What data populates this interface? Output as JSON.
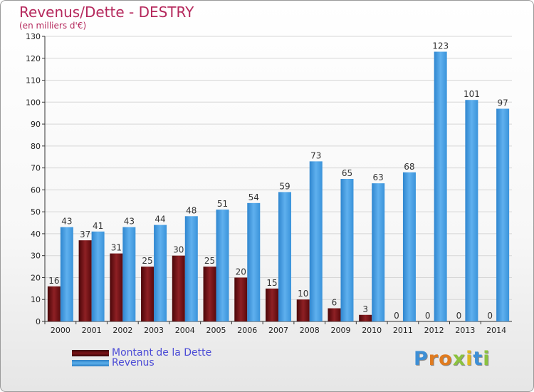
{
  "title": "Revenus/Dette - DESTRY",
  "subtitle": "(en milliers d'€)",
  "colors": {
    "dette": "#6b0f12",
    "revenus": "#3d96dc",
    "title": "#b5285c",
    "legend_text": "#4a4ad6"
  },
  "legend": [
    {
      "label": "Montant de la Dette",
      "series": "dette"
    },
    {
      "label": "Revenus",
      "series": "revenus"
    }
  ],
  "logo": {
    "text": "Proxiti"
  },
  "chart_data": {
    "type": "bar",
    "title": "Revenus/Dette - DESTRY",
    "subtitle": "(en milliers d'€)",
    "xlabel": "",
    "ylabel": "",
    "categories": [
      "2000",
      "2001",
      "2002",
      "2003",
      "2004",
      "2005",
      "2006",
      "2007",
      "2008",
      "2009",
      "2010",
      "2011",
      "2012",
      "2013",
      "2014"
    ],
    "series": [
      {
        "name": "Montant de la Dette",
        "values": [
          16,
          37,
          31,
          25,
          30,
          25,
          20,
          15,
          10,
          6,
          3,
          0,
          0,
          0,
          0
        ]
      },
      {
        "name": "Revenus",
        "values": [
          43,
          41,
          43,
          44,
          48,
          51,
          54,
          59,
          73,
          65,
          63,
          68,
          123,
          101,
          97
        ]
      }
    ],
    "ylim": [
      0,
      130
    ],
    "yticks": [
      0,
      10,
      20,
      30,
      40,
      50,
      60,
      70,
      80,
      90,
      100,
      110,
      120,
      130
    ],
    "grid": true,
    "legend_position": "bottom-left"
  }
}
